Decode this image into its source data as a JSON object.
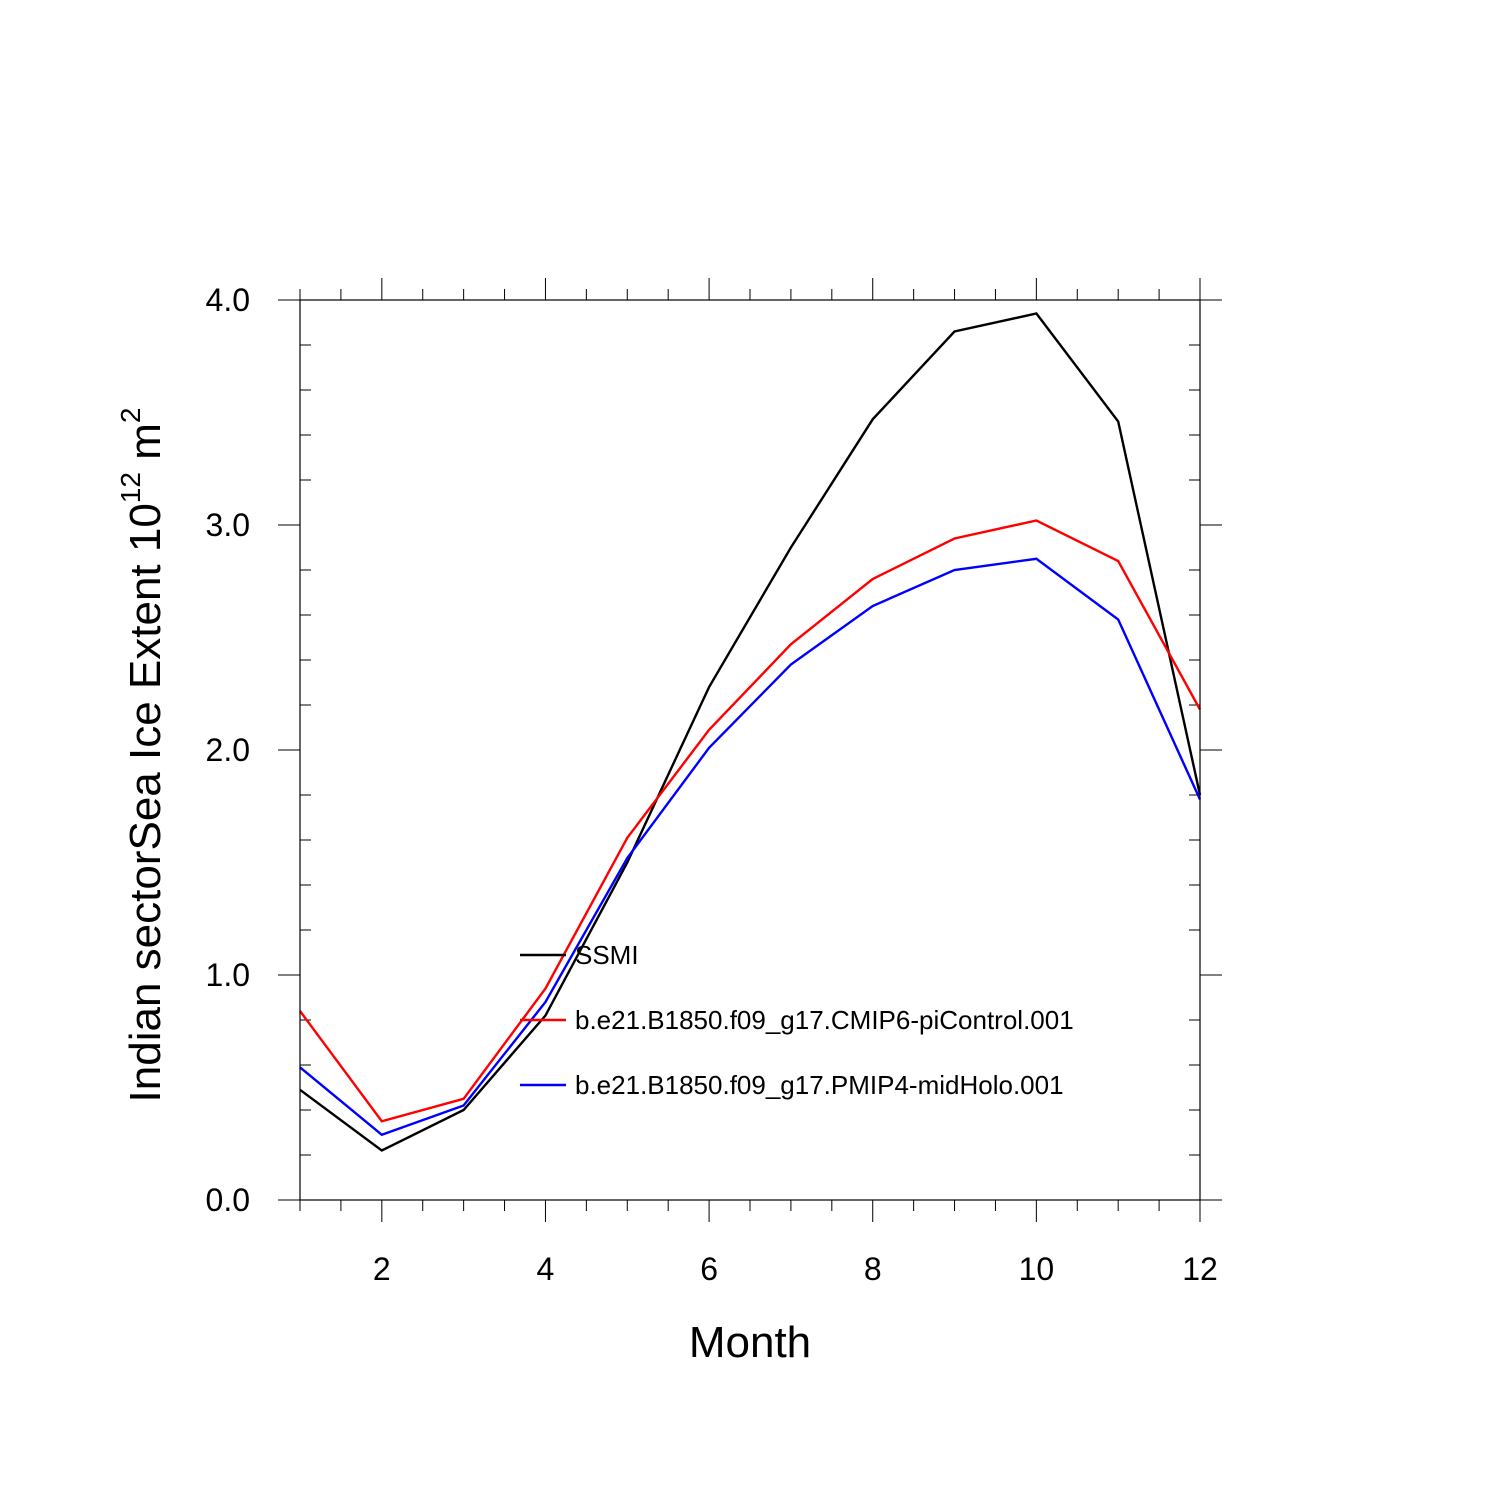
{
  "chart_data": {
    "type": "line",
    "title": "",
    "xlabel": "Month",
    "ylabel": {
      "prefix": "Indian sectorSea Ice Extent 10",
      "exponent": "12",
      "unit": " m",
      "unit_exponent": "2"
    },
    "xlim": [
      1,
      12
    ],
    "ylim": [
      0,
      4
    ],
    "x_ticks": [
      2,
      4,
      6,
      8,
      10,
      12
    ],
    "x_tick_labels": [
      "2",
      "4",
      "6",
      "8",
      "10",
      "12"
    ],
    "y_ticks": [
      0,
      1,
      2,
      3,
      4
    ],
    "y_tick_labels": [
      "0.0",
      "1.0",
      "2.0",
      "3.0",
      "4.0"
    ],
    "legend_position": "center",
    "x": [
      1,
      2,
      3,
      4,
      5,
      6,
      7,
      8,
      9,
      10,
      11,
      12
    ],
    "series": [
      {
        "name": "SSMI",
        "color": "#000000",
        "values": [
          0.49,
          0.22,
          0.4,
          0.82,
          1.5,
          2.28,
          2.9,
          3.47,
          3.86,
          3.94,
          3.46,
          1.8
        ]
      },
      {
        "name": "b.e21.B1850.f09_g17.CMIP6-piControl.001",
        "color": "#ff0000",
        "values": [
          0.84,
          0.35,
          0.45,
          0.94,
          1.61,
          2.09,
          2.47,
          2.76,
          2.94,
          3.02,
          2.84,
          2.18
        ]
      },
      {
        "name": "b.e21.B1850.f09_g17.PMIP4-midHolo.001",
        "color": "#0000ff",
        "values": [
          0.59,
          0.29,
          0.42,
          0.88,
          1.52,
          2.01,
          2.38,
          2.64,
          2.8,
          2.85,
          2.58,
          1.78
        ]
      }
    ]
  }
}
